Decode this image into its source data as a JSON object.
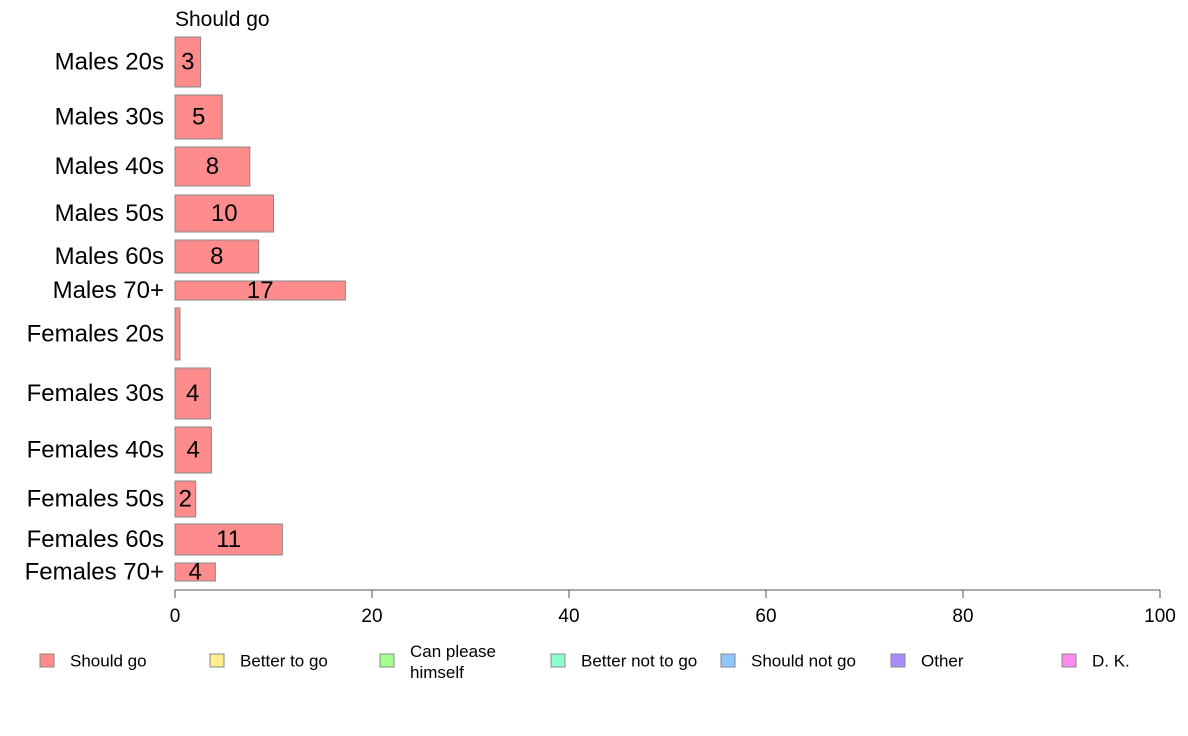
{
  "chart_data": {
    "type": "bar",
    "orientation": "horizontal",
    "title": "Should go",
    "categories": [
      "Males 20s",
      "Males 30s",
      "Males 40s",
      "Males 50s",
      "Males 60s",
      "Males 70+",
      "Females 20s",
      "Females 30s",
      "Females 40s",
      "Females 50s",
      "Females 60s",
      "Females 70+"
    ],
    "series": [
      {
        "name": "Should go",
        "color": "#ff8c8c",
        "values": [
          2.6,
          4.8,
          7.6,
          10.0,
          8.5,
          17.3,
          0.5,
          3.6,
          3.7,
          2.1,
          10.9,
          4.1
        ],
        "labels": [
          "3",
          "5",
          "8",
          "10",
          "8",
          "17",
          "",
          "4",
          "4",
          "2",
          "11",
          "4"
        ]
      }
    ],
    "xlim": [
      0,
      100
    ],
    "xticks": [
      0,
      20,
      40,
      60,
      80,
      100
    ],
    "grid": false,
    "legend_position": "bottom",
    "legend": [
      {
        "label": "Should go",
        "color": "#ff8c8c"
      },
      {
        "label": "Better to go",
        "color": "#ffee8c"
      },
      {
        "label": "Can please himself",
        "color": "#a6ff8c"
      },
      {
        "label": "Better not to go",
        "color": "#8cffcf"
      },
      {
        "label": "Should not go",
        "color": "#8cc8ff"
      },
      {
        "label": "Other",
        "color": "#a98cff"
      },
      {
        "label": "D. K.",
        "color": "#ff8cf0"
      }
    ]
  }
}
